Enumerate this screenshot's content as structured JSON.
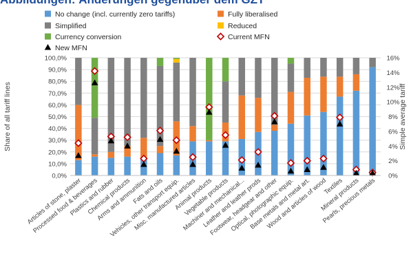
{
  "header": {
    "title": "Abbildungen: Änderungen gegenüber dem GZT"
  },
  "chart_data": {
    "type": "bar",
    "stacked": true,
    "categories": [
      "Articles of stone, plaster",
      "Processed food & beverages",
      "Plastics and rubber",
      "Chemical products",
      "Arms and ammunition",
      "Fats and oils",
      "Vehicles, other transport equip.",
      "Misc. manufactured articles",
      "Animal products",
      "Vegetable products",
      "Machiner and mechanical...",
      "Leather and leather prods",
      "Footwear, headgear and other",
      "Optical, photographic equip.",
      "Base metals and metal art.",
      "Wood and articles of wood",
      "Textiles",
      "Mineral products",
      "Pearls, precious metals"
    ],
    "series": [
      {
        "name": "No change (incl. currently zero tariffs)",
        "color": "#5b9bd5",
        "values": [
          13,
          16,
          15,
          16,
          14,
          19,
          17,
          29,
          29,
          29,
          31,
          37,
          38,
          44,
          51,
          54,
          67,
          72,
          92
        ]
      },
      {
        "name": "Fully liberalised",
        "color": "#ed7d31",
        "values": [
          47,
          2,
          5,
          9,
          18,
          6,
          29,
          13,
          1,
          16,
          37,
          29,
          5,
          27,
          32,
          30,
          17,
          14,
          0
        ]
      },
      {
        "name": "Simplified",
        "color": "#808080",
        "values": [
          40,
          31,
          80,
          75,
          68,
          68,
          50,
          58,
          0,
          35,
          32,
          34,
          57,
          24,
          17,
          16,
          16,
          14,
          8
        ]
      },
      {
        "name": "Reduced",
        "color": "#ffc000",
        "values": [
          0,
          0,
          0,
          0,
          0,
          0,
          3,
          0,
          0,
          0,
          0,
          0,
          0,
          0,
          0,
          0,
          0,
          0,
          0
        ]
      },
      {
        "name": "Currency conversion",
        "color": "#70ad47",
        "values": [
          0,
          51,
          0,
          0,
          0,
          7,
          1,
          0,
          70,
          20,
          0,
          0,
          0,
          5,
          0,
          0,
          0,
          0,
          0
        ]
      },
      {
        "name": "Current MFN",
        "marker": "diamond",
        "axis": "right",
        "values": [
          4.4,
          14.2,
          5.3,
          5.2,
          2.3,
          6.1,
          4.8,
          2.5,
          9.3,
          5.5,
          2.1,
          3.2,
          8.1,
          1.7,
          2.0,
          2.3,
          7.9,
          0.8,
          0.4
        ]
      },
      {
        "name": "New MFN",
        "marker": "triangle",
        "axis": "right",
        "values": [
          2.7,
          12.6,
          4.7,
          4.0,
          1.5,
          4.9,
          3.3,
          1.5,
          8.6,
          4.1,
          1.0,
          1.4,
          7.3,
          0.6,
          0.8,
          1.1,
          7.0,
          0.3,
          0.3
        ]
      }
    ],
    "ylabel": "Share of all tariff lines",
    "y2label": "Simple average tariff",
    "ylim": [
      0,
      100
    ],
    "y2lim": [
      0,
      16
    ],
    "yticks": [
      "0,0%",
      "10,0%",
      "20,0%",
      "30,0%",
      "40,0%",
      "50,0%",
      "60,0%",
      "70,0%",
      "80,0%",
      "90,0%",
      "100,0%"
    ],
    "y2ticks": [
      "0%",
      "2%",
      "4%",
      "6%",
      "8%",
      "10%",
      "12%",
      "14%",
      "16%"
    ],
    "grid": true,
    "legend_placement": "top"
  }
}
